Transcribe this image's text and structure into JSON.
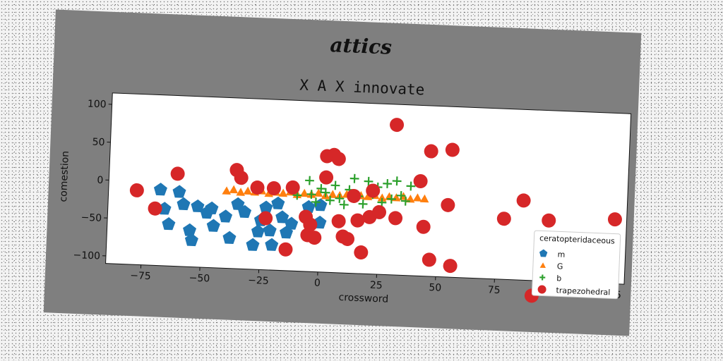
{
  "chart_data": {
    "type": "scatter",
    "suptitle": "attics",
    "title": "X A X innovate",
    "xlabel": "crossword",
    "ylabel": "comestion",
    "xlim": [
      -90,
      130
    ],
    "ylim": [
      -110,
      115
    ],
    "xticks": [
      -75,
      -50,
      -25,
      0,
      25,
      50,
      75,
      100,
      125
    ],
    "yticks": [
      100,
      50,
      0,
      -50,
      -100
    ],
    "grid": false,
    "legend": {
      "title": "ceratopteridaceous",
      "placement": "lower right"
    },
    "series": [
      {
        "name": "m",
        "marker": "pentagon",
        "color": "#1f77b4",
        "points": [
          [
            -68,
            -10
          ],
          [
            -66,
            -35
          ],
          [
            -64,
            -55
          ],
          [
            -60,
            -12
          ],
          [
            -58,
            -28
          ],
          [
            -55,
            -62
          ],
          [
            -54,
            -75
          ],
          [
            -52,
            -30
          ],
          [
            -48,
            -38
          ],
          [
            -46,
            -32
          ],
          [
            -45,
            -55
          ],
          [
            -40,
            -42
          ],
          [
            -38,
            -70
          ],
          [
            -35,
            -25
          ],
          [
            -32,
            -35
          ],
          [
            -28,
            -78
          ],
          [
            -26,
            -60
          ],
          [
            -25,
            -45
          ],
          [
            -23,
            -28
          ],
          [
            -21,
            -58
          ],
          [
            -20,
            -77
          ],
          [
            -18,
            -22
          ],
          [
            -16,
            -40
          ],
          [
            -14,
            -60
          ],
          [
            -12,
            -48
          ],
          [
            -5,
            -25
          ],
          [
            0,
            -22
          ],
          [
            0,
            -45
          ]
        ]
      },
      {
        "name": "G",
        "marker": "triangle",
        "color": "#ff7f0e",
        "points": [
          [
            -40,
            -8
          ],
          [
            -37,
            -6
          ],
          [
            -34,
            -9
          ],
          [
            -31,
            -7
          ],
          [
            -28,
            -8
          ],
          [
            -25,
            -6
          ],
          [
            -22,
            -9
          ],
          [
            -19,
            -7
          ],
          [
            -16,
            -8
          ],
          [
            -13,
            -6
          ],
          [
            -10,
            -9
          ],
          [
            -7,
            -7
          ],
          [
            -4,
            -8
          ],
          [
            -1,
            -6
          ],
          [
            2,
            -9
          ],
          [
            5,
            -7
          ],
          [
            8,
            -8
          ],
          [
            11,
            -6
          ],
          [
            14,
            -9
          ],
          [
            17,
            -7
          ],
          [
            20,
            -8
          ],
          [
            23,
            -6
          ],
          [
            26,
            -9
          ],
          [
            29,
            -7
          ],
          [
            32,
            -8
          ],
          [
            35,
            -6
          ],
          [
            38,
            -9
          ],
          [
            41,
            -7
          ],
          [
            44,
            -8
          ]
        ]
      },
      {
        "name": "b",
        "marker": "plus",
        "color": "#2ca02c",
        "points": [
          [
            -10,
            -10
          ],
          [
            -5,
            10
          ],
          [
            -4,
            -8
          ],
          [
            -2,
            -18
          ],
          [
            0,
            0
          ],
          [
            2,
            -5
          ],
          [
            4,
            -15
          ],
          [
            6,
            5
          ],
          [
            8,
            -12
          ],
          [
            10,
            -20
          ],
          [
            12,
            0
          ],
          [
            14,
            15
          ],
          [
            16,
            -8
          ],
          [
            18,
            -18
          ],
          [
            20,
            12
          ],
          [
            22,
            -5
          ],
          [
            24,
            5
          ],
          [
            26,
            -15
          ],
          [
            28,
            10
          ],
          [
            30,
            -10
          ],
          [
            32,
            14
          ],
          [
            34,
            -5
          ],
          [
            36,
            -12
          ],
          [
            38,
            8
          ]
        ]
      },
      {
        "name": "trapezohedral",
        "marker": "circle",
        "color": "#d62728",
        "points": [
          [
            -78,
            -12
          ],
          [
            -70,
            -35
          ],
          [
            -61,
            12
          ],
          [
            -36,
            20
          ],
          [
            -34,
            10
          ],
          [
            -27,
            -2
          ],
          [
            -23,
            -42
          ],
          [
            -20,
            -2
          ],
          [
            -14,
            -82
          ],
          [
            -12,
            0
          ],
          [
            -6,
            -38
          ],
          [
            -5,
            -62
          ],
          [
            -4,
            -48
          ],
          [
            -2,
            -65
          ],
          [
            2,
            15
          ],
          [
            2,
            43
          ],
          [
            5,
            45
          ],
          [
            7,
            40
          ],
          [
            8,
            -42
          ],
          [
            10,
            -62
          ],
          [
            12,
            -65
          ],
          [
            14,
            -8
          ],
          [
            16,
            -40
          ],
          [
            18,
            -82
          ],
          [
            21,
            -35
          ],
          [
            22,
            0
          ],
          [
            25,
            -28
          ],
          [
            31,
            88
          ],
          [
            32,
            -35
          ],
          [
            42,
            15
          ],
          [
            44,
            -45
          ],
          [
            46,
            55
          ],
          [
            47,
            -88
          ],
          [
            54,
            -15
          ],
          [
            55,
            58
          ],
          [
            56,
            -95
          ],
          [
            78,
            -30
          ],
          [
            86,
            -5
          ],
          [
            91,
            -130
          ],
          [
            97,
            -30
          ],
          [
            114,
            -60
          ],
          [
            125,
            -25
          ]
        ]
      }
    ]
  }
}
